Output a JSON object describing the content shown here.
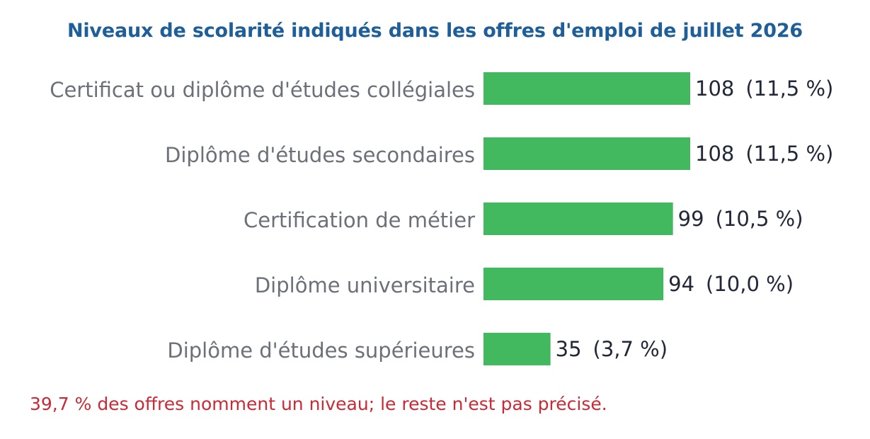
{
  "chart_data": {
    "type": "bar",
    "orientation": "horizontal",
    "title": "Niveaux de scolarité indiqués dans les offres d'emploi de juillet 2026",
    "categories": [
      "Certificat ou diplôme d'études collégiales",
      "Diplôme d'études secondaires",
      "Certification de métier",
      "Diplôme universitaire",
      "Diplôme d'études supérieures"
    ],
    "values": [
      108,
      108,
      99,
      94,
      35
    ],
    "value_labels": [
      "108",
      "108",
      "99",
      "94",
      "35"
    ],
    "percent_labels": [
      "(11,5 %)",
      "(11,5 %)",
      "(10,5 %)",
      "(10,0 %)",
      "(3,7 %)"
    ],
    "xlim": [
      0,
      108
    ],
    "grid": false,
    "legend": "none",
    "colors": {
      "bar": "#42b95f",
      "title": "#1f5f99",
      "category_label": "#6b7079",
      "value_label": "#222838",
      "footnote": "#cc2936"
    }
  },
  "footnote": "39,7 % des offres nomment un niveau; le reste n'est pas précisé."
}
